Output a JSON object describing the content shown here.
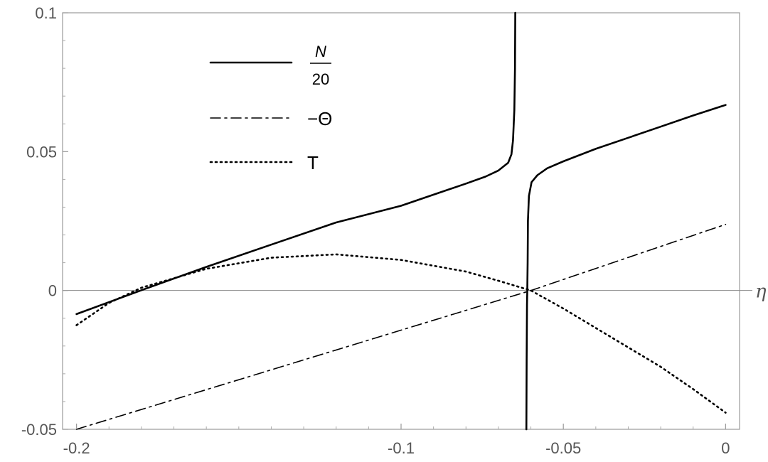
{
  "chart_data": {
    "type": "line",
    "title": "",
    "xlabel": "η",
    "ylabel": "",
    "xlim": [
      -0.2043,
      0.0043
    ],
    "ylim": [
      -0.05,
      0.1
    ],
    "x_ticks": [
      -0.2,
      -0.1,
      -0.05,
      0
    ],
    "x_tick_labels": [
      "-0.2",
      "-0.1",
      "-0.05",
      "0"
    ],
    "y_ticks": [
      -0.05,
      0,
      0.05,
      0.1
    ],
    "y_tick_labels": [
      "-0.05",
      "0",
      "0.05",
      "0.1"
    ],
    "grid": false,
    "legend_position": "top-left",
    "series": [
      {
        "name": "N/20",
        "legend_numerator": "N",
        "legend_denominator": "20",
        "style": "solid",
        "points": [
          [
            -0.2,
            -0.0085
          ],
          [
            -0.18,
            0.0001
          ],
          [
            -0.16,
            0.0085
          ],
          [
            -0.14,
            0.0165
          ],
          [
            -0.12,
            0.0245
          ],
          [
            -0.1,
            0.0305
          ],
          [
            -0.09,
            0.0345
          ],
          [
            -0.08,
            0.0385
          ],
          [
            -0.074,
            0.041
          ],
          [
            -0.07,
            0.0432
          ],
          [
            -0.067,
            0.046
          ],
          [
            -0.066,
            0.049
          ],
          [
            -0.0655,
            0.054
          ],
          [
            -0.0651,
            0.065
          ],
          [
            -0.0649,
            0.08
          ],
          [
            -0.0648,
            0.1
          ]
        ],
        "points_right": [
          [
            -0.0614,
            -0.05
          ],
          [
            -0.0613,
            -0.025
          ],
          [
            -0.0612,
            -0.005
          ],
          [
            -0.0611,
            0.0
          ],
          [
            -0.061,
            0.01
          ],
          [
            -0.0609,
            0.025
          ],
          [
            -0.0606,
            0.034
          ],
          [
            -0.0598,
            0.039
          ],
          [
            -0.058,
            0.0415
          ],
          [
            -0.055,
            0.044
          ],
          [
            -0.05,
            0.0465
          ],
          [
            -0.04,
            0.051
          ],
          [
            -0.03,
            0.055
          ],
          [
            -0.02,
            0.059
          ],
          [
            -0.01,
            0.063
          ],
          [
            0,
            0.0668
          ]
        ]
      },
      {
        "name": "-Θ",
        "legend_label": "−Θ",
        "style": "dashdot",
        "points": [
          [
            -0.2,
            -0.05
          ],
          [
            -0.06,
            0.0
          ],
          [
            0,
            0.0238
          ]
        ]
      },
      {
        "name": "T",
        "legend_label": "T",
        "style": "dotted",
        "points": [
          [
            -0.2,
            -0.0125
          ],
          [
            -0.19,
            -0.0045
          ],
          [
            -0.18,
            0.001
          ],
          [
            -0.16,
            0.0078
          ],
          [
            -0.14,
            0.0118
          ],
          [
            -0.12,
            0.013
          ],
          [
            -0.1,
            0.011
          ],
          [
            -0.08,
            0.0068
          ],
          [
            -0.07,
            0.0035
          ],
          [
            -0.06,
            0.0
          ],
          [
            -0.05,
            -0.0065
          ],
          [
            -0.04,
            -0.0135
          ],
          [
            -0.03,
            -0.0205
          ],
          [
            -0.02,
            -0.0275
          ],
          [
            -0.01,
            -0.0355
          ],
          [
            0,
            -0.044
          ]
        ]
      }
    ]
  }
}
